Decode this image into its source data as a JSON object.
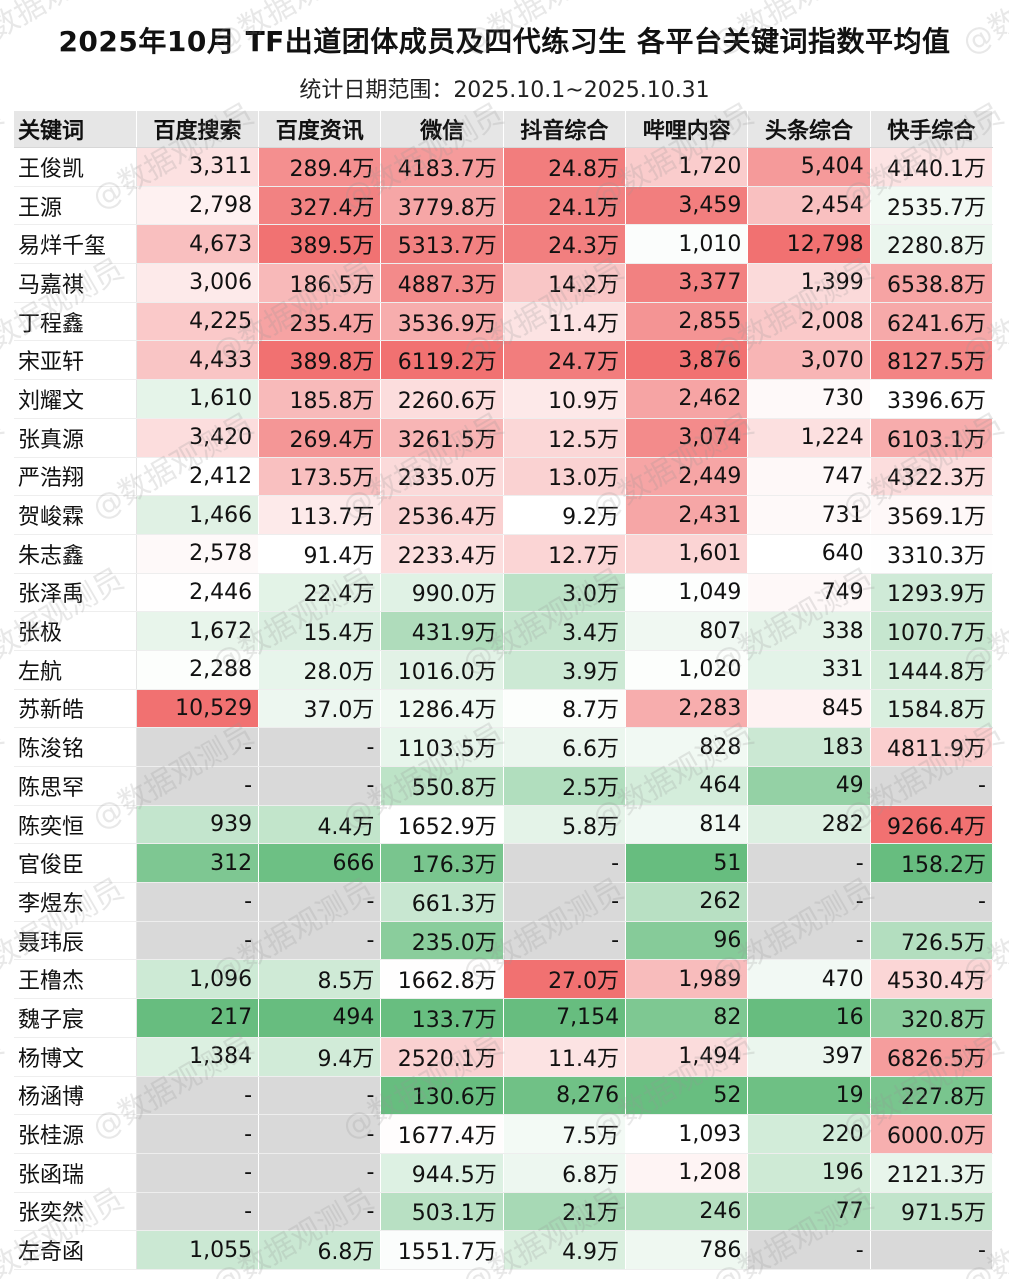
{
  "title": "2025年10月 TF出道团体成员及四代练习生 各平台关键词指数平均值",
  "subtitle": "统计日期范围：2025.10.1~2025.10.31",
  "watermark_text": "@数据观测员",
  "colors": {
    "high": "#f06a6a",
    "mid": "#ffffff",
    "low": "#5fba78",
    "missing": "#d9d9d9"
  },
  "chart_data": {
    "type": "table",
    "columns": [
      "关键词",
      "百度搜索",
      "百度资讯",
      "微信",
      "抖音综合",
      "哔哩内容",
      "头条综合",
      "快手综合"
    ],
    "rows": [
      [
        "王俊凯",
        "3,311",
        "289.4万",
        "4183.7万",
        "24.8万",
        "1,720",
        "5,404",
        "4140.1万"
      ],
      [
        "王源",
        "2,798",
        "327.4万",
        "3779.8万",
        "24.1万",
        "3,459",
        "2,454",
        "2535.7万"
      ],
      [
        "易烊千玺",
        "4,673",
        "389.5万",
        "5313.7万",
        "24.3万",
        "1,010",
        "12,798",
        "2280.8万"
      ],
      [
        "马嘉祺",
        "3,006",
        "186.5万",
        "4887.3万",
        "14.2万",
        "3,377",
        "1,399",
        "6538.8万"
      ],
      [
        "丁程鑫",
        "4,225",
        "235.4万",
        "3536.9万",
        "11.4万",
        "2,855",
        "2,008",
        "6241.6万"
      ],
      [
        "宋亚轩",
        "4,433",
        "389.8万",
        "6119.2万",
        "24.7万",
        "3,876",
        "3,070",
        "8127.5万"
      ],
      [
        "刘耀文",
        "1,610",
        "185.8万",
        "2260.6万",
        "10.9万",
        "2,462",
        "730",
        "3396.6万"
      ],
      [
        "张真源",
        "3,420",
        "269.4万",
        "3261.5万",
        "12.5万",
        "3,074",
        "1,224",
        "6103.1万"
      ],
      [
        "严浩翔",
        "2,412",
        "173.5万",
        "2335.0万",
        "13.0万",
        "2,449",
        "747",
        "4322.3万"
      ],
      [
        "贺峻霖",
        "1,466",
        "113.7万",
        "2536.4万",
        "9.2万",
        "2,431",
        "731",
        "3569.1万"
      ],
      [
        "朱志鑫",
        "2,578",
        "91.4万",
        "2233.4万",
        "12.7万",
        "1,601",
        "640",
        "3310.3万"
      ],
      [
        "张泽禹",
        "2,446",
        "22.4万",
        "990.0万",
        "3.0万",
        "1,049",
        "749",
        "1293.9万"
      ],
      [
        "张极",
        "1,672",
        "15.4万",
        "431.9万",
        "3.4万",
        "807",
        "338",
        "1070.7万"
      ],
      [
        "左航",
        "2,288",
        "28.0万",
        "1016.0万",
        "3.9万",
        "1,020",
        "331",
        "1444.8万"
      ],
      [
        "苏新皓",
        "10,529",
        "37.0万",
        "1286.4万",
        "8.7万",
        "2,283",
        "845",
        "1584.8万"
      ],
      [
        "陈浚铭",
        "-",
        "-",
        "1103.5万",
        "6.6万",
        "828",
        "183",
        "4811.9万"
      ],
      [
        "陈思罕",
        "-",
        "-",
        "550.8万",
        "2.5万",
        "464",
        "49",
        "-"
      ],
      [
        "陈奕恒",
        "939",
        "4.4万",
        "1652.9万",
        "5.8万",
        "814",
        "282",
        "9266.4万"
      ],
      [
        "官俊臣",
        "312",
        "666",
        "176.3万",
        "-",
        "51",
        "-",
        "158.2万"
      ],
      [
        "李煜东",
        "-",
        "-",
        "661.3万",
        "-",
        "262",
        "-",
        "-"
      ],
      [
        "聂玮辰",
        "-",
        "-",
        "235.0万",
        "-",
        "96",
        "-",
        "726.5万"
      ],
      [
        "王橹杰",
        "1,096",
        "8.5万",
        "1662.8万",
        "27.0万",
        "1,989",
        "470",
        "4530.4万"
      ],
      [
        "魏子宸",
        "217",
        "494",
        "133.7万",
        "7,154",
        "82",
        "16",
        "320.8万"
      ],
      [
        "杨博文",
        "1,384",
        "9.4万",
        "2520.1万",
        "11.4万",
        "1,494",
        "397",
        "6826.5万"
      ],
      [
        "杨涵博",
        "-",
        "-",
        "130.6万",
        "8,276",
        "52",
        "19",
        "227.8万"
      ],
      [
        "张桂源",
        "-",
        "-",
        "1677.4万",
        "7.5万",
        "1,093",
        "220",
        "6000.0万"
      ],
      [
        "张函瑞",
        "-",
        "-",
        "944.5万",
        "6.8万",
        "1,208",
        "196",
        "2121.3万"
      ],
      [
        "张奕然",
        "-",
        "-",
        "503.1万",
        "2.1万",
        "246",
        "77",
        "971.5万"
      ],
      [
        "左奇函",
        "1,055",
        "6.8万",
        "1551.7万",
        "4.9万",
        "786",
        "-",
        "-"
      ]
    ]
  }
}
